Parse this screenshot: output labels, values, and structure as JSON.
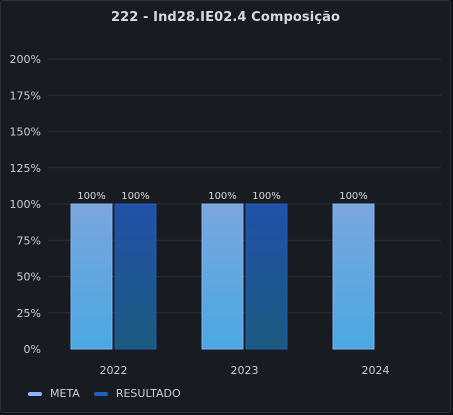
{
  "panel": {
    "title": "222 - Ind28.IE02.4 Composição"
  },
  "chart_data": {
    "type": "bar",
    "categories": [
      "2022",
      "2023",
      "2024"
    ],
    "series": [
      {
        "name": "META",
        "values": [
          100,
          100,
          100
        ],
        "color": "#8ab8ff",
        "gradient": [
          "#7ba6dd",
          "#4aa8e2"
        ]
      },
      {
        "name": "RESULTADO",
        "values": [
          100,
          100,
          null
        ],
        "color": "#1f60c4",
        "gradient": [
          "#2151a8",
          "#1c5a80"
        ]
      }
    ],
    "data_labels": [
      "100%",
      "100%",
      "100%",
      "100%",
      "100%"
    ],
    "yticks": [
      "0%",
      "25%",
      "50%",
      "75%",
      "100%",
      "125%",
      "150%",
      "175%",
      "200%"
    ],
    "ylim": [
      0,
      200
    ],
    "yunit": "%",
    "grid": true,
    "legend_position": "bottom-left"
  }
}
